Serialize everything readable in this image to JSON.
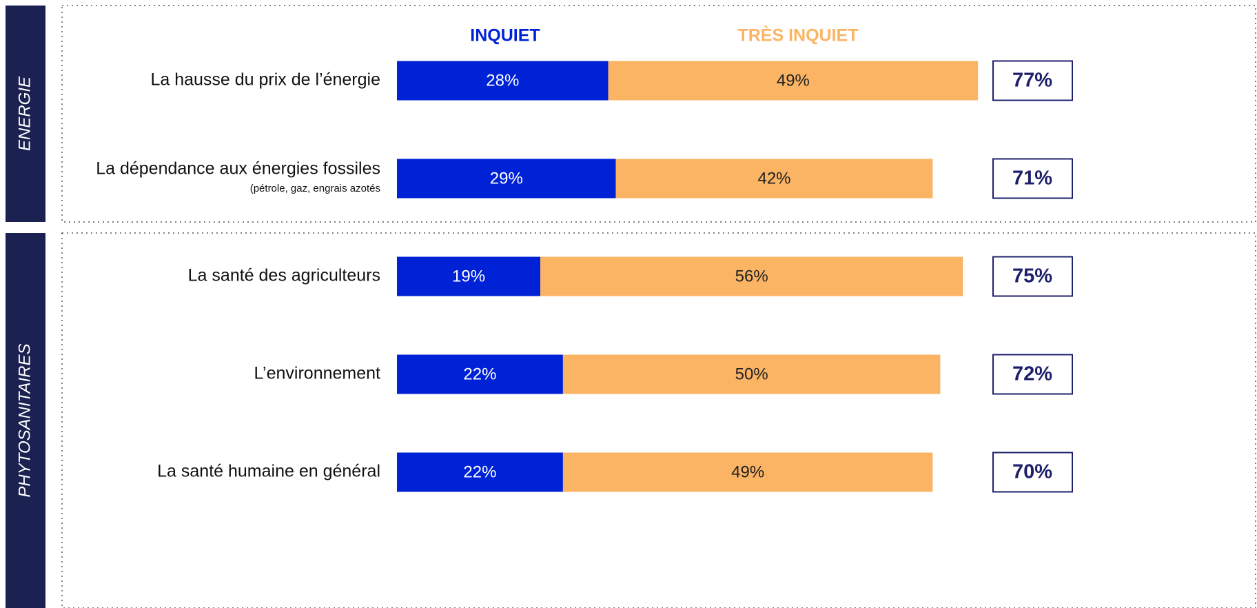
{
  "chart_data": {
    "type": "stacked_bar_horizontal",
    "categories": [
      "La hausse du prix de l’énergie",
      "La dépendance aux énergies fossiles",
      "La santé des agriculteurs",
      "L’environnement",
      "La santé humaine en général"
    ],
    "category_notes": [
      null,
      "(pétrole, gaz, engrais azotés",
      null,
      null,
      null
    ],
    "groups": [
      {
        "name": "ENERGIE",
        "rows": 2
      },
      {
        "name": "PHYTOSANITAIRES",
        "rows": 3
      }
    ],
    "series": [
      {
        "name": "INQUIET",
        "color": "#0022d6",
        "values": [
          28,
          29,
          19,
          22,
          22
        ],
        "value_labels": [
          "28%",
          "29%",
          "19%",
          "22%",
          "22%"
        ]
      },
      {
        "name": "TRÈS INQUIET",
        "color": "#fbb464",
        "values": [
          49,
          42,
          56,
          50,
          49
        ],
        "value_labels": [
          "49%",
          "42%",
          "56%",
          "50%",
          "49%"
        ]
      }
    ],
    "totals": [
      77,
      71,
      75,
      72,
      70
    ],
    "total_labels": [
      "77%",
      "71%",
      "75%",
      "72%",
      "70%"
    ]
  }
}
